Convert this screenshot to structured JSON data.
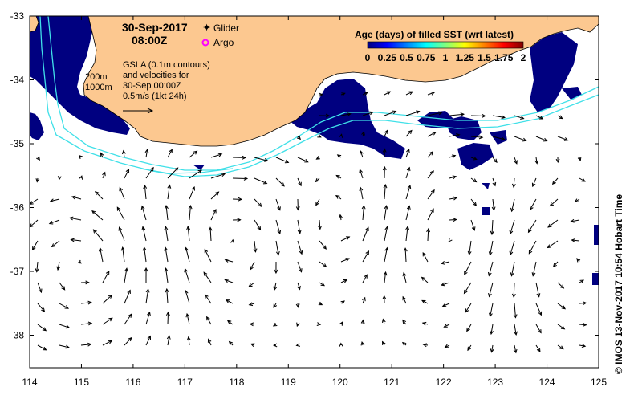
{
  "map": {
    "title_date": "30-Sep-2017",
    "title_time": "08:00Z",
    "legend_glider": "Glider",
    "legend_argo": "Argo",
    "depth_labels": [
      "200m",
      "1000m"
    ],
    "gsla_lines": [
      "GSLA (0.1m contours)",
      "and velocities for",
      "30-Sep 00:00Z",
      "0.5m/s (1kt 24h)"
    ],
    "colorbar_title": "Age (days) of filled SST (wrt latest)",
    "colorbar_ticks": [
      "0",
      "0.25",
      "0.5",
      "0.75",
      "1",
      "1.25",
      "1.5",
      "1.75",
      "2"
    ],
    "colorbar_colors": [
      "#00007f",
      "#0000ff",
      "#0080ff",
      "#00ffff",
      "#80ff80",
      "#ffff00",
      "#ff8000",
      "#ff0000",
      "#7f0000"
    ],
    "x_ticks": [
      "114",
      "115",
      "116",
      "117",
      "118",
      "119",
      "120",
      "121",
      "122",
      "123",
      "124",
      "125"
    ],
    "y_ticks": [
      "-33",
      "-34",
      "-35",
      "-36",
      "-37",
      "-38"
    ],
    "credit": "© IMOS 13-Nov-2017 10:54 Hobart Time",
    "colors": {
      "land": "#fcc890",
      "sst_fill": "#000080",
      "contour": "#40e0e8",
      "glider": "#ff00ff",
      "argo": "#ff00ff"
    }
  }
}
